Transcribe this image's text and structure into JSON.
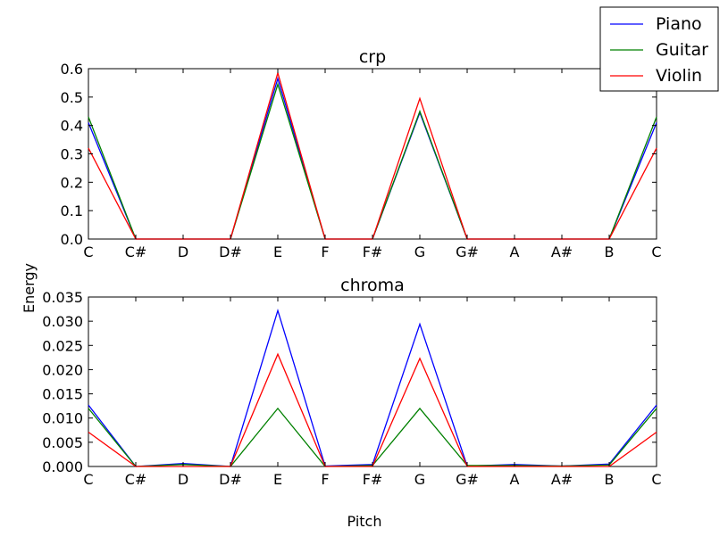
{
  "figure": {
    "xlabel": "Pitch",
    "ylabel": "Energy"
  },
  "legend": {
    "entries": [
      {
        "name": "Piano",
        "color": "#0000ff"
      },
      {
        "name": "Guitar",
        "color": "#008000"
      },
      {
        "name": "Violin",
        "color": "#ff0000"
      }
    ],
    "placement": "top-right"
  },
  "chart_data": [
    {
      "type": "line",
      "title": "crp",
      "xlabel": "",
      "ylabel": "",
      "categories": [
        "C",
        "C#",
        "D",
        "D#",
        "E",
        "F",
        "F#",
        "G",
        "G#",
        "A",
        "A#",
        "B",
        "C"
      ],
      "ylim": [
        0,
        0.6
      ],
      "yticks": [
        "0.0",
        "0.1",
        "0.2",
        "0.3",
        "0.4",
        "0.5",
        "0.6"
      ],
      "grid": false,
      "series": [
        {
          "name": "Piano",
          "color": "#0000ff",
          "values": [
            0.41,
            0.0,
            0.0,
            0.0,
            0.565,
            0.0,
            0.0,
            0.445,
            0.0,
            0.0,
            0.0,
            0.0,
            0.41
          ]
        },
        {
          "name": "Guitar",
          "color": "#008000",
          "values": [
            0.43,
            0.0,
            0.0,
            0.0,
            0.545,
            0.0,
            0.0,
            0.45,
            0.0,
            0.0,
            0.0,
            0.0,
            0.43
          ]
        },
        {
          "name": "Violin",
          "color": "#ff0000",
          "values": [
            0.32,
            0.0,
            0.0,
            0.0,
            0.585,
            0.0,
            0.0,
            0.495,
            0.0,
            0.0,
            0.0,
            0.0,
            0.32
          ]
        }
      ]
    },
    {
      "type": "line",
      "title": "chroma",
      "xlabel": "",
      "ylabel": "",
      "categories": [
        "C",
        "C#",
        "D",
        "D#",
        "E",
        "F",
        "F#",
        "G",
        "G#",
        "A",
        "A#",
        "B",
        "C"
      ],
      "ylim": [
        0,
        0.035
      ],
      "yticks": [
        "0.000",
        "0.005",
        "0.010",
        "0.015",
        "0.020",
        "0.025",
        "0.030",
        "0.035"
      ],
      "grid": false,
      "series": [
        {
          "name": "Piano",
          "color": "#0000ff",
          "values": [
            0.0127,
            0.0,
            0.0006,
            0.0,
            0.0322,
            0.0001,
            0.0004,
            0.0294,
            0.0001,
            0.0004,
            0.0001,
            0.0005,
            0.0127
          ]
        },
        {
          "name": "Guitar",
          "color": "#008000",
          "values": [
            0.012,
            0.0,
            0.0004,
            0.0,
            0.012,
            0.0,
            0.0002,
            0.012,
            0.0002,
            0.0002,
            0.0001,
            0.0003,
            0.012
          ]
        },
        {
          "name": "Violin",
          "color": "#ff0000",
          "values": [
            0.0071,
            0.0,
            0.0,
            0.0,
            0.0232,
            0.0,
            0.0,
            0.0223,
            0.0,
            0.0,
            0.0,
            0.0,
            0.0071
          ]
        }
      ]
    }
  ]
}
